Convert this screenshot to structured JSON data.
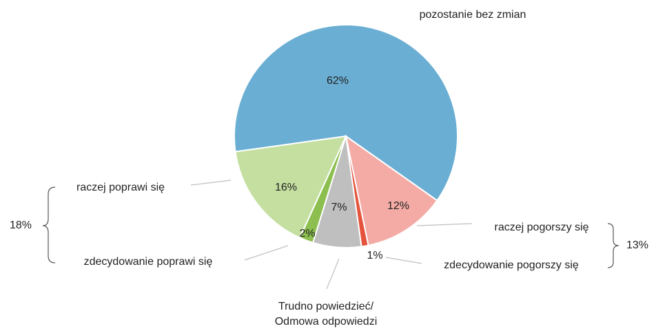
{
  "chart_data": {
    "type": "pie",
    "categories": [
      "pozostanie bez zmian",
      "raczej pogorszy się",
      "zdecydowanie pogorszy się",
      "Trudno powiedzieć/ Odmowa odpowiedzi",
      "zdecydowanie poprawi się",
      "raczej poprawi się"
    ],
    "values": [
      62,
      12,
      1,
      7,
      2,
      16
    ],
    "value_labels": [
      "62%",
      "12%",
      "1%",
      "7%",
      "2%",
      "16%"
    ],
    "colors": [
      "#6aaed3",
      "#f4aba5",
      "#e5533d",
      "#bfbfbf",
      "#8cbf4f",
      "#c4dfa0"
    ],
    "groups": [
      {
        "value": 18,
        "label": "18%"
      },
      {
        "value": 13,
        "label": "13%"
      }
    ]
  }
}
